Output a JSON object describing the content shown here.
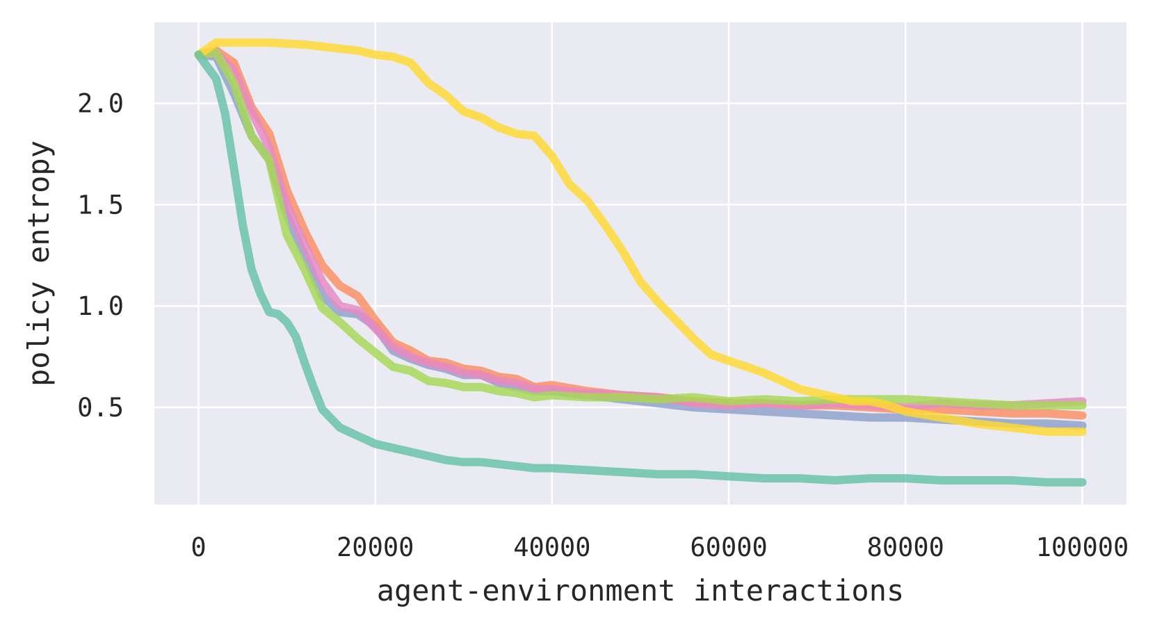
{
  "chart_data": {
    "type": "line",
    "title": "",
    "xlabel": "agent-environment interactions",
    "ylabel": "policy entropy",
    "xlim": [
      -5000,
      105000
    ],
    "ylim": [
      0.02,
      2.4
    ],
    "xticks": [
      0,
      20000,
      40000,
      60000,
      80000,
      100000
    ],
    "xtick_labels": [
      "0",
      "20000",
      "40000",
      "60000",
      "80000",
      "100000"
    ],
    "yticks": [
      0.5,
      1.0,
      1.5,
      2.0
    ],
    "ytick_labels": [
      "0.5",
      "1.0",
      "1.5",
      "2.0"
    ],
    "grid": true,
    "legend": "none",
    "series": [
      {
        "color": "#8da0cb",
        "points": [
          [
            0,
            2.24
          ],
          [
            2000,
            2.23
          ],
          [
            4000,
            2.05
          ],
          [
            6000,
            1.84
          ],
          [
            8000,
            1.72
          ],
          [
            10000,
            1.45
          ],
          [
            12000,
            1.25
          ],
          [
            14000,
            1.05
          ],
          [
            16000,
            0.97
          ],
          [
            18000,
            0.96
          ],
          [
            20000,
            0.9
          ],
          [
            22000,
            0.78
          ],
          [
            24000,
            0.74
          ],
          [
            26000,
            0.71
          ],
          [
            28000,
            0.69
          ],
          [
            30000,
            0.66
          ],
          [
            32000,
            0.66
          ],
          [
            34000,
            0.62
          ],
          [
            36000,
            0.6
          ],
          [
            38000,
            0.58
          ],
          [
            40000,
            0.58
          ],
          [
            44000,
            0.56
          ],
          [
            48000,
            0.54
          ],
          [
            52000,
            0.52
          ],
          [
            56000,
            0.5
          ],
          [
            60000,
            0.49
          ],
          [
            64000,
            0.48
          ],
          [
            68000,
            0.47
          ],
          [
            72000,
            0.46
          ],
          [
            76000,
            0.45
          ],
          [
            80000,
            0.45
          ],
          [
            84000,
            0.44
          ],
          [
            88000,
            0.43
          ],
          [
            92000,
            0.42
          ],
          [
            96000,
            0.42
          ],
          [
            100000,
            0.41
          ]
        ]
      },
      {
        "color": "#fc8d62",
        "points": [
          [
            0,
            2.24
          ],
          [
            2000,
            2.26
          ],
          [
            4000,
            2.2
          ],
          [
            6000,
            1.98
          ],
          [
            8000,
            1.85
          ],
          [
            10000,
            1.57
          ],
          [
            12000,
            1.37
          ],
          [
            14000,
            1.2
          ],
          [
            16000,
            1.1
          ],
          [
            18000,
            1.05
          ],
          [
            20000,
            0.93
          ],
          [
            22000,
            0.82
          ],
          [
            24000,
            0.78
          ],
          [
            26000,
            0.73
          ],
          [
            28000,
            0.72
          ],
          [
            30000,
            0.69
          ],
          [
            32000,
            0.68
          ],
          [
            34000,
            0.65
          ],
          [
            36000,
            0.64
          ],
          [
            38000,
            0.6
          ],
          [
            40000,
            0.61
          ],
          [
            44000,
            0.58
          ],
          [
            48000,
            0.56
          ],
          [
            52000,
            0.55
          ],
          [
            56000,
            0.53
          ],
          [
            60000,
            0.52
          ],
          [
            64000,
            0.52
          ],
          [
            68000,
            0.51
          ],
          [
            72000,
            0.51
          ],
          [
            76000,
            0.5
          ],
          [
            80000,
            0.49
          ],
          [
            84000,
            0.49
          ],
          [
            88000,
            0.48
          ],
          [
            92000,
            0.47
          ],
          [
            96000,
            0.47
          ],
          [
            100000,
            0.46
          ]
        ]
      },
      {
        "color": "#e78ac3",
        "points": [
          [
            0,
            2.24
          ],
          [
            2000,
            2.25
          ],
          [
            4000,
            2.16
          ],
          [
            6000,
            1.96
          ],
          [
            8000,
            1.78
          ],
          [
            10000,
            1.5
          ],
          [
            12000,
            1.3
          ],
          [
            14000,
            1.12
          ],
          [
            16000,
            1.0
          ],
          [
            18000,
            0.98
          ],
          [
            20000,
            0.89
          ],
          [
            22000,
            0.8
          ],
          [
            24000,
            0.75
          ],
          [
            26000,
            0.72
          ],
          [
            28000,
            0.7
          ],
          [
            30000,
            0.67
          ],
          [
            32000,
            0.66
          ],
          [
            34000,
            0.63
          ],
          [
            36000,
            0.62
          ],
          [
            38000,
            0.59
          ],
          [
            40000,
            0.59
          ],
          [
            44000,
            0.57
          ],
          [
            48000,
            0.56
          ],
          [
            52000,
            0.55
          ],
          [
            56000,
            0.52
          ],
          [
            60000,
            0.51
          ],
          [
            64000,
            0.52
          ],
          [
            68000,
            0.51
          ],
          [
            72000,
            0.52
          ],
          [
            76000,
            0.51
          ],
          [
            80000,
            0.5
          ],
          [
            84000,
            0.52
          ],
          [
            88000,
            0.51
          ],
          [
            92000,
            0.51
          ],
          [
            96000,
            0.52
          ],
          [
            100000,
            0.53
          ]
        ]
      },
      {
        "color": "#a6d854",
        "points": [
          [
            0,
            2.24
          ],
          [
            2000,
            2.25
          ],
          [
            4000,
            2.1
          ],
          [
            6000,
            1.84
          ],
          [
            8000,
            1.72
          ],
          [
            10000,
            1.35
          ],
          [
            12000,
            1.18
          ],
          [
            14000,
            0.99
          ],
          [
            16000,
            0.92
          ],
          [
            18000,
            0.84
          ],
          [
            20000,
            0.77
          ],
          [
            22000,
            0.7
          ],
          [
            24000,
            0.68
          ],
          [
            26000,
            0.63
          ],
          [
            28000,
            0.62
          ],
          [
            30000,
            0.6
          ],
          [
            32000,
            0.6
          ],
          [
            34000,
            0.58
          ],
          [
            36000,
            0.57
          ],
          [
            38000,
            0.55
          ],
          [
            40000,
            0.56
          ],
          [
            44000,
            0.55
          ],
          [
            48000,
            0.55
          ],
          [
            52000,
            0.54
          ],
          [
            56000,
            0.55
          ],
          [
            60000,
            0.53
          ],
          [
            64000,
            0.54
          ],
          [
            68000,
            0.53
          ],
          [
            72000,
            0.54
          ],
          [
            76000,
            0.54
          ],
          [
            80000,
            0.54
          ],
          [
            84000,
            0.53
          ],
          [
            88000,
            0.52
          ],
          [
            92000,
            0.51
          ],
          [
            96000,
            0.51
          ],
          [
            100000,
            0.51
          ]
        ]
      },
      {
        "color": "#ffd92f",
        "points": [
          [
            0,
            2.24
          ],
          [
            2000,
            2.3
          ],
          [
            4000,
            2.3
          ],
          [
            8000,
            2.3
          ],
          [
            12000,
            2.29
          ],
          [
            14000,
            2.28
          ],
          [
            16000,
            2.27
          ],
          [
            18000,
            2.26
          ],
          [
            20000,
            2.24
          ],
          [
            22000,
            2.23
          ],
          [
            24000,
            2.2
          ],
          [
            26000,
            2.1
          ],
          [
            28000,
            2.04
          ],
          [
            30000,
            1.96
          ],
          [
            32000,
            1.93
          ],
          [
            34000,
            1.88
          ],
          [
            36000,
            1.85
          ],
          [
            38000,
            1.84
          ],
          [
            40000,
            1.74
          ],
          [
            42000,
            1.6
          ],
          [
            44000,
            1.52
          ],
          [
            46000,
            1.4
          ],
          [
            48000,
            1.27
          ],
          [
            50000,
            1.12
          ],
          [
            52000,
            1.02
          ],
          [
            54000,
            0.93
          ],
          [
            56000,
            0.84
          ],
          [
            58000,
            0.76
          ],
          [
            60000,
            0.73
          ],
          [
            62000,
            0.7
          ],
          [
            64000,
            0.67
          ],
          [
            66000,
            0.63
          ],
          [
            68000,
            0.59
          ],
          [
            70000,
            0.57
          ],
          [
            72000,
            0.55
          ],
          [
            74000,
            0.53
          ],
          [
            76000,
            0.53
          ],
          [
            78000,
            0.51
          ],
          [
            80000,
            0.48
          ],
          [
            84000,
            0.45
          ],
          [
            88000,
            0.42
          ],
          [
            92000,
            0.4
          ],
          [
            96000,
            0.38
          ],
          [
            100000,
            0.38
          ]
        ]
      },
      {
        "color": "#66c2a5",
        "points": [
          [
            0,
            2.24
          ],
          [
            2000,
            2.12
          ],
          [
            3000,
            1.95
          ],
          [
            4000,
            1.68
          ],
          [
            5000,
            1.4
          ],
          [
            6000,
            1.18
          ],
          [
            7000,
            1.06
          ],
          [
            8000,
            0.97
          ],
          [
            9000,
            0.96
          ],
          [
            10000,
            0.92
          ],
          [
            11000,
            0.85
          ],
          [
            12000,
            0.72
          ],
          [
            13000,
            0.6
          ],
          [
            14000,
            0.49
          ],
          [
            16000,
            0.4
          ],
          [
            18000,
            0.36
          ],
          [
            20000,
            0.32
          ],
          [
            22000,
            0.3
          ],
          [
            24000,
            0.28
          ],
          [
            26000,
            0.26
          ],
          [
            28000,
            0.24
          ],
          [
            30000,
            0.23
          ],
          [
            32000,
            0.23
          ],
          [
            34000,
            0.22
          ],
          [
            36000,
            0.21
          ],
          [
            38000,
            0.2
          ],
          [
            40000,
            0.2
          ],
          [
            44000,
            0.19
          ],
          [
            48000,
            0.18
          ],
          [
            52000,
            0.17
          ],
          [
            56000,
            0.17
          ],
          [
            60000,
            0.16
          ],
          [
            64000,
            0.15
          ],
          [
            68000,
            0.15
          ],
          [
            72000,
            0.14
          ],
          [
            76000,
            0.15
          ],
          [
            80000,
            0.15
          ],
          [
            84000,
            0.14
          ],
          [
            88000,
            0.14
          ],
          [
            92000,
            0.14
          ],
          [
            96000,
            0.13
          ],
          [
            100000,
            0.13
          ]
        ]
      }
    ]
  }
}
